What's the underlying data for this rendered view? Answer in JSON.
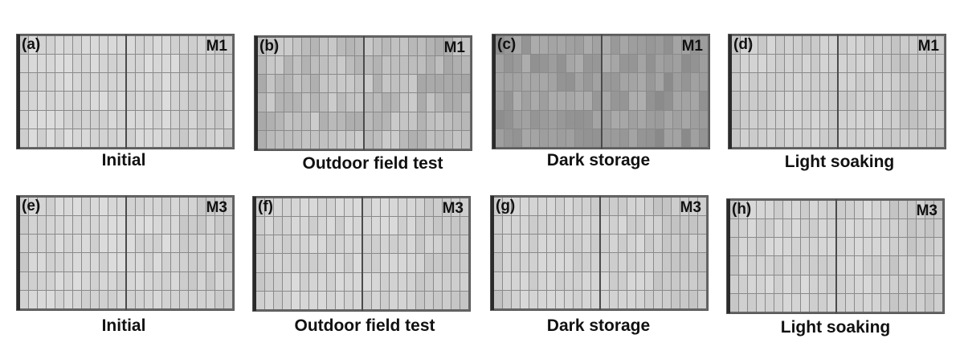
{
  "panels": [
    {
      "tag": "(a)",
      "module": "M1",
      "caption": "Initial",
      "tone": "light",
      "base": "#d6d6d6"
    },
    {
      "tag": "(b)",
      "module": "M1",
      "caption": "Outdoor field test",
      "tone": "mixed",
      "base": "#bdbdbd"
    },
    {
      "tag": "(c)",
      "module": "M1",
      "caption": "Dark storage",
      "tone": "dark",
      "base": "#a0a0a0"
    },
    {
      "tag": "(d)",
      "module": "M1",
      "caption": "Light soaking",
      "tone": "light",
      "base": "#cfcfcf"
    },
    {
      "tag": "(e)",
      "module": "M3",
      "caption": "Initial",
      "tone": "light",
      "base": "#d6d6d6"
    },
    {
      "tag": "(f)",
      "module": "M3",
      "caption": "Outdoor field test",
      "tone": "light",
      "base": "#d4d4d4"
    },
    {
      "tag": "(g)",
      "module": "M3",
      "caption": "Dark storage",
      "tone": "light",
      "base": "#d2d2d2"
    },
    {
      "tag": "(h)",
      "module": "M3",
      "caption": "Light soaking",
      "tone": "light",
      "base": "#d3d3d3"
    }
  ]
}
